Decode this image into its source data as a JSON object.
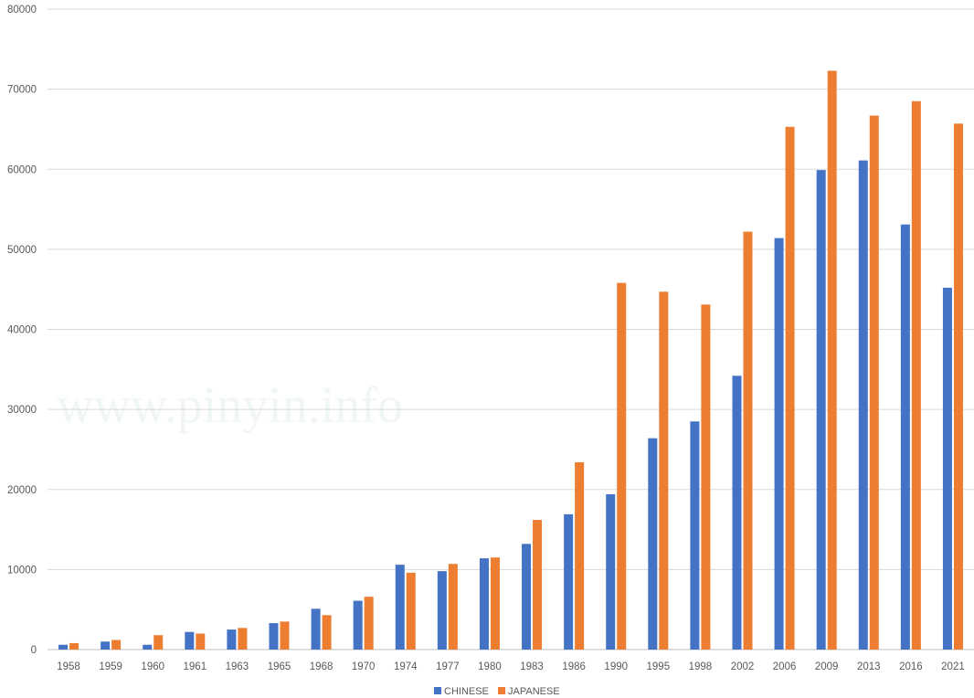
{
  "watermark": "www.pinyin.info",
  "chart_data": {
    "type": "bar",
    "title": "",
    "xlabel": "",
    "ylabel": "",
    "ylim": [
      0,
      80000
    ],
    "yticks": [
      0,
      10000,
      20000,
      30000,
      40000,
      50000,
      60000,
      70000,
      80000
    ],
    "grid": true,
    "legend_position": "bottom",
    "categories": [
      "1958",
      "1959",
      "1960",
      "1961",
      "1963",
      "1965",
      "1968",
      "1970",
      "1974",
      "1977",
      "1980",
      "1983",
      "1986",
      "1990",
      "1995",
      "1998",
      "2002",
      "2006",
      "2009",
      "2013",
      "2016",
      "2021"
    ],
    "series": [
      {
        "name": "CHINESE",
        "color": "#4472c4",
        "values": [
          600,
          1000,
          600,
          2200,
          2500,
          3300,
          5100,
          6100,
          10600,
          9800,
          11400,
          13200,
          16900,
          19400,
          26400,
          28500,
          34200,
          51400,
          59900,
          61100,
          53100,
          45200
        ]
      },
      {
        "name": "JAPANESE",
        "color": "#ed7d31",
        "values": [
          800,
          1200,
          1800,
          2000,
          2700,
          3500,
          4300,
          6600,
          9600,
          10700,
          11500,
          16200,
          23400,
          45800,
          44700,
          43100,
          52200,
          65300,
          72300,
          66700,
          68500,
          65700
        ]
      }
    ]
  }
}
